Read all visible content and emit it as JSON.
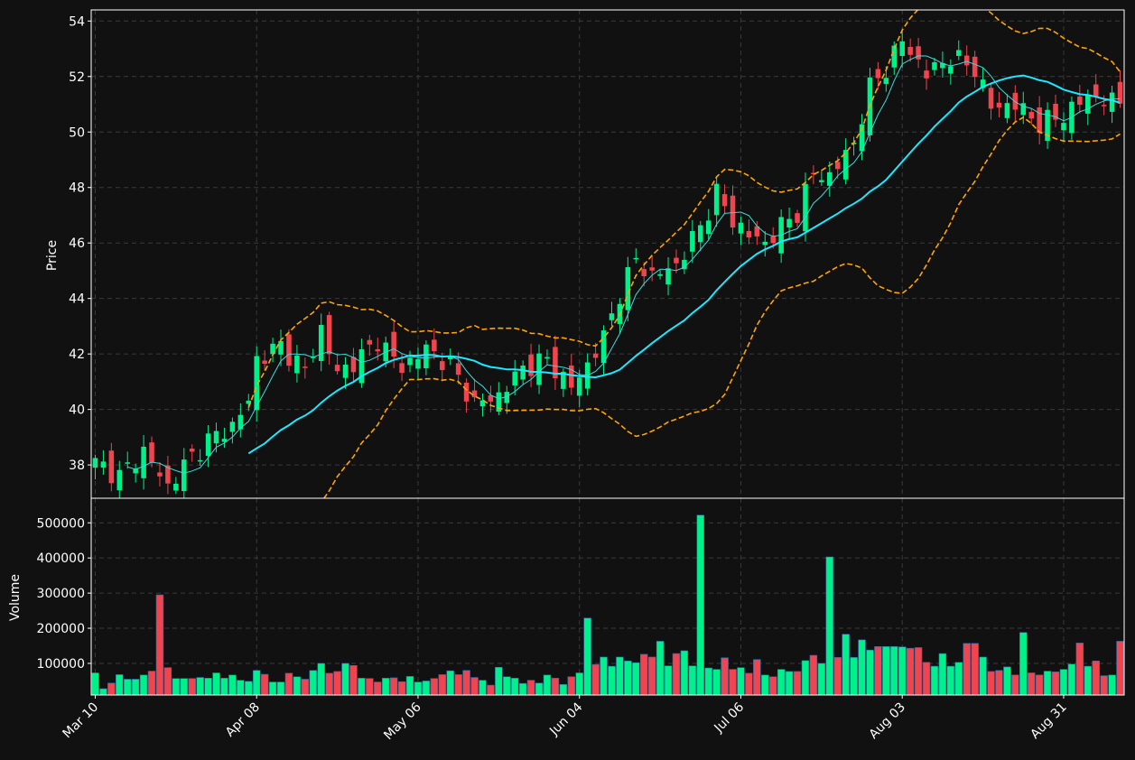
{
  "colors": {
    "background": "#111111",
    "up": "#00f08a",
    "down": "#f0444e",
    "ma_fast": "#40d8d8",
    "ma_slow": "#1ee8ff",
    "bands": "#ffa500",
    "grid": "#3a3a3a",
    "text": "#ffffff"
  },
  "chart_data": [
    {
      "type": "candlestick",
      "panel": "price",
      "ylabel": "Price",
      "ylim": [
        36.8,
        54.4
      ],
      "yticks": [
        "38",
        "40",
        "42",
        "44",
        "46",
        "48",
        "50",
        "52",
        "54"
      ],
      "grid": true,
      "x_tick_labels": [
        "Mar 10",
        "Apr 08",
        "May 06",
        "Jun 04",
        "Jul 06",
        "Aug 03",
        "Aug 31"
      ],
      "x_tick_indices": [
        0,
        20,
        40,
        60,
        80,
        100,
        120
      ],
      "series": [
        {
          "kind": "ohlc",
          "close_anchors": [
            [
              0,
              38.1
            ],
            [
              3,
              37.6
            ],
            [
              6,
              38.5
            ],
            [
              9,
              37.2
            ],
            [
              11,
              38.0
            ],
            [
              14,
              38.9
            ],
            [
              17,
              39.4
            ],
            [
              19,
              40.3
            ],
            [
              20,
              41.8
            ],
            [
              23,
              42.3
            ],
            [
              26,
              41.4
            ],
            [
              28,
              42.9
            ],
            [
              30,
              41.3
            ],
            [
              33,
              41.9
            ],
            [
              35,
              42.5
            ],
            [
              38,
              41.5
            ],
            [
              41,
              42.2
            ],
            [
              44,
              41.6
            ],
            [
              47,
              40.2
            ],
            [
              50,
              40.5
            ],
            [
              53,
              41.5
            ],
            [
              56,
              41.8
            ],
            [
              59,
              40.8
            ],
            [
              61,
              41.6
            ],
            [
              63,
              42.6
            ],
            [
              65,
              44.2
            ],
            [
              67,
              45.4
            ],
            [
              69,
              44.8
            ],
            [
              72,
              45.2
            ],
            [
              75,
              46.6
            ],
            [
              77,
              47.8
            ],
            [
              79,
              46.8
            ],
            [
              81,
              46.3
            ],
            [
              83,
              46.0
            ],
            [
              85,
              46.6
            ],
            [
              87,
              47.1
            ],
            [
              89,
              48.5
            ],
            [
              91,
              48.4
            ],
            [
              94,
              49.6
            ],
            [
              96,
              51.6
            ],
            [
              98,
              52.3
            ],
            [
              100,
              53.3
            ],
            [
              103,
              52.1
            ],
            [
              106,
              52.7
            ],
            [
              109,
              52.3
            ],
            [
              111,
              50.9
            ],
            [
              114,
              51.0
            ],
            [
              117,
              50.3
            ],
            [
              120,
              50.6
            ],
            [
              123,
              51.3
            ],
            [
              126,
              51.1
            ]
          ]
        },
        {
          "kind": "ma_fast",
          "name": "",
          "window": 5
        },
        {
          "kind": "ma_slow",
          "name": "",
          "window": 20
        },
        {
          "kind": "bands",
          "name": "",
          "window": 20,
          "k": 2
        }
      ]
    },
    {
      "type": "bar",
      "panel": "volume",
      "ylabel": "Volume",
      "ylim": [
        10000,
        570000
      ],
      "yticks": [
        "100000",
        "200000",
        "300000",
        "400000",
        "500000"
      ],
      "grid": true,
      "series": [
        {
          "name": "",
          "values": [
            73000,
            28000,
            44000,
            68000,
            55000,
            55000,
            67000,
            78000,
            295000,
            88000,
            57000,
            57000,
            57000,
            60000,
            58000,
            73000,
            58000,
            67000,
            52000,
            49000,
            80000,
            69000,
            47000,
            47000,
            72000,
            62000,
            55000,
            80000,
            100000,
            72000,
            77000,
            100000,
            94000,
            58000,
            57000,
            47000,
            58000,
            59000,
            48000,
            63000,
            47000,
            50000,
            57000,
            68000,
            79000,
            68000,
            80000,
            60000,
            52000,
            38000,
            89000,
            62000,
            58000,
            43000,
            52000,
            44000,
            67000,
            58000,
            40000,
            62000,
            73000,
            229000,
            97000,
            118000,
            92000,
            118000,
            107000,
            102000,
            126000,
            118000,
            163000,
            93000,
            128000,
            136000,
            93000,
            522000,
            87000,
            83000,
            116000,
            83000,
            88000,
            72000,
            111000,
            67000,
            62000,
            83000,
            77000,
            77000,
            108000,
            123000,
            100000,
            403000,
            117000,
            183000,
            117000,
            167000,
            138000,
            148000,
            148000,
            148000,
            147000,
            143000,
            145000,
            103000,
            92000,
            128000,
            92000,
            103000,
            157000,
            157000,
            118000,
            77000,
            80000,
            90000,
            67000,
            188000,
            73000,
            67000,
            78000,
            76000,
            83000,
            98000,
            158000,
            92000,
            107000,
            65000,
            67000,
            163000
          ]
        }
      ]
    }
  ]
}
